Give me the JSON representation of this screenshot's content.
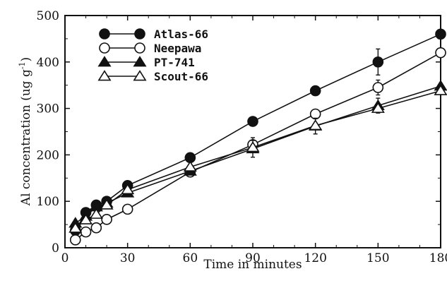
{
  "chart_data": {
    "type": "line",
    "title": "",
    "xlabel": "Time in minutes",
    "ylabel_main": "Al concentration (ug g",
    "ylabel_sup": "-1",
    "ylabel_close": ")",
    "xlim": [
      0,
      180
    ],
    "ylim": [
      0,
      500
    ],
    "xticks": [
      0,
      30,
      60,
      90,
      120,
      150,
      180
    ],
    "yticks": [
      0,
      100,
      200,
      300,
      400,
      500
    ],
    "grid": false,
    "legend_position": "top-left",
    "x": [
      5,
      10,
      15,
      20,
      30,
      60,
      90,
      120,
      150,
      180
    ],
    "series": [
      {
        "name": "Atlas-66",
        "marker": "filled-circle",
        "values": [
          37,
          76,
          92,
          100,
          134,
          194,
          272,
          338,
          400,
          460
        ],
        "error": [
          0,
          0,
          0,
          0,
          0,
          0,
          0,
          0,
          28,
          0
        ]
      },
      {
        "name": "Neepawa",
        "marker": "open-circle",
        "values": [
          17,
          34,
          43,
          61,
          83,
          163,
          222,
          288,
          345,
          420
        ],
        "error": [
          0,
          0,
          0,
          0,
          0,
          0,
          15,
          0,
          16,
          0
        ]
      },
      {
        "name": "PT-741",
        "marker": "filled-triangle",
        "values": [
          53,
          68,
          88,
          96,
          118,
          165,
          213,
          262,
          306,
          348
        ],
        "error": [
          0,
          0,
          0,
          0,
          0,
          0,
          18,
          17,
          16,
          0
        ]
      },
      {
        "name": "Scout-66",
        "marker": "open-triangle",
        "values": [
          42,
          60,
          72,
          92,
          125,
          174,
          216,
          263,
          300,
          338
        ],
        "error": [
          0,
          0,
          0,
          0,
          0,
          0,
          0,
          0,
          0,
          0
        ]
      }
    ]
  }
}
